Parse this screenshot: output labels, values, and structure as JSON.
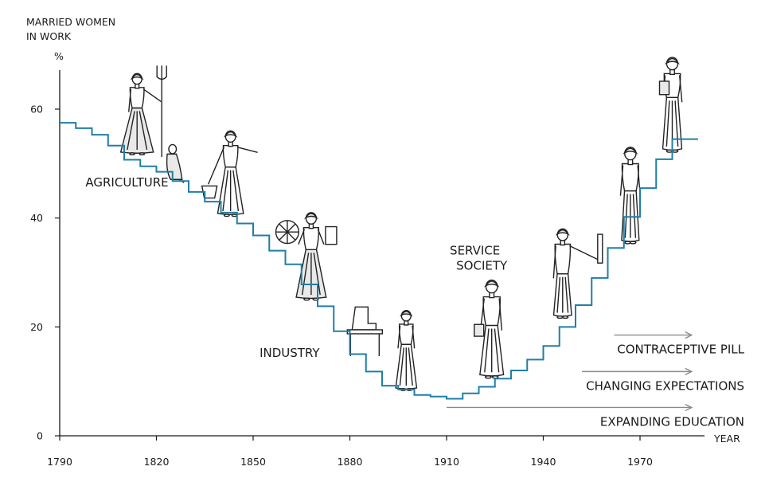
{
  "chart_data": {
    "type": "line",
    "step": true,
    "y_title_lines": [
      "MARRIED WOMEN",
      "IN WORK"
    ],
    "y_unit": "%",
    "xlabel": "YEAR",
    "xlim": [
      1790,
      1990
    ],
    "ylim": [
      0,
      70
    ],
    "x_ticks": [
      1790,
      1820,
      1850,
      1880,
      1910,
      1940,
      1970
    ],
    "y_ticks": [
      0,
      20,
      40,
      60
    ],
    "series_color": "#1f7fa8",
    "series": [
      {
        "x": [
          1790,
          1795,
          1800,
          1805,
          1810,
          1815,
          1820,
          1825,
          1830,
          1835,
          1840,
          1845,
          1850,
          1855,
          1860,
          1865,
          1870,
          1875,
          1880,
          1885,
          1890,
          1895,
          1900,
          1905,
          1910,
          1915,
          1920,
          1925,
          1930,
          1935,
          1940,
          1945,
          1950,
          1955,
          1960,
          1965,
          1970,
          1975,
          1980,
          1985,
          1988
        ],
        "values": [
          57.5,
          56.5,
          55.3,
          53.3,
          50.7,
          49.5,
          48.5,
          46.8,
          44.8,
          43.0,
          41.0,
          39.0,
          36.8,
          34.0,
          31.5,
          27.8,
          23.8,
          19.2,
          15.0,
          11.8,
          9.2,
          8.5,
          7.5,
          7.2,
          6.8,
          7.8,
          9.0,
          10.5,
          12.0,
          14.0,
          16.5,
          20.0,
          24.0,
          29.0,
          34.5,
          40.2,
          45.5,
          50.8,
          54.5,
          54.5,
          54.5
        ]
      }
    ],
    "era_labels": [
      {
        "text": "AGRICULTURE",
        "x": 1798,
        "y": 45.8
      },
      {
        "text": "INDUSTRY",
        "x": 1852,
        "y": 14.5
      },
      {
        "text": "SERVICE",
        "x": 1911,
        "y": 33.3
      },
      {
        "text": "SOCIETY",
        "x": 1913,
        "y": 30.5
      }
    ],
    "trend_arrows": [
      {
        "text": "CONTRACEPTIVE PILL",
        "x_start": 1962,
        "x_end": 1986,
        "y": 18.5
      },
      {
        "text": "CHANGING EXPECTATIONS",
        "x_start": 1952,
        "x_end": 1986,
        "y": 11.8
      },
      {
        "text": "EXPANDING EDUCATION",
        "x_start": 1910,
        "x_end": 1986,
        "y": 5.2
      }
    ],
    "figures": [
      {
        "name": "farm-woman-pitchfork-figure",
        "x": 1814,
        "y_top": 68,
        "y_bottom": 51.5
      },
      {
        "name": "sitting-child-figure",
        "x": 1825,
        "y_top": 53.5,
        "y_bottom": 46.5
      },
      {
        "name": "woman-with-bucket-figure",
        "x": 1843,
        "y_top": 56,
        "y_bottom": 40.2
      },
      {
        "name": "woman-spinning-wheel-figure",
        "x": 1868,
        "y_top": 41,
        "y_bottom": 24.8
      },
      {
        "name": "sewing-machine-woman-figure",
        "x": 1896,
        "y_top": 24.3,
        "y_bottom": 8.2
      },
      {
        "name": "office-woman-figure",
        "x": 1924,
        "y_top": 28.6,
        "y_bottom": 10.5
      },
      {
        "name": "professional-woman-figure",
        "x": 1946,
        "y_top": 38,
        "y_bottom": 21.5
      },
      {
        "name": "woman-in-skirt-suit-figure",
        "x": 1967,
        "y_top": 53,
        "y_bottom": 35.2
      },
      {
        "name": "woman-with-folder-figure",
        "x": 1980,
        "y_top": 69.5,
        "y_bottom": 52.0
      }
    ]
  }
}
